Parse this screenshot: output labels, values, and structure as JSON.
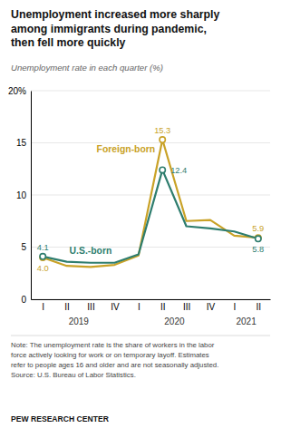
{
  "chart_data": {
    "type": "line",
    "title": "Unemployment increased more sharply\namong immigrants during pandemic,\nthen fell more quickly",
    "subtitle": "Unemployment rate in each quarter (%)",
    "categories": [
      "I",
      "II",
      "III",
      "IV",
      "I",
      "II",
      "III",
      "IV",
      "I",
      "II"
    ],
    "category_groups": [
      {
        "label": "2019",
        "size": 4
      },
      {
        "label": "2020",
        "size": 4
      },
      {
        "label": "2021",
        "size": 2
      }
    ],
    "series": [
      {
        "name": "Foreign-born",
        "color": "#C9A227",
        "values": [
          4.0,
          3.2,
          3.1,
          3.3,
          4.2,
          15.3,
          7.5,
          7.6,
          6.1,
          5.9
        ],
        "value_labels": [
          "4.0",
          null,
          null,
          null,
          null,
          "15.3",
          null,
          null,
          null,
          "5.9"
        ]
      },
      {
        "name": "U.S.-born",
        "color": "#2E7D6E",
        "values": [
          4.1,
          3.6,
          3.5,
          3.5,
          4.3,
          12.4,
          7.0,
          6.8,
          6.5,
          5.8
        ],
        "value_labels": [
          "4.1",
          null,
          null,
          null,
          null,
          "12.4",
          null,
          null,
          null,
          "5.8"
        ]
      }
    ],
    "ylim": [
      0,
      20
    ],
    "yticks": [
      0,
      5,
      10,
      15,
      {
        "value": 20,
        "label": "20%"
      }
    ],
    "grid": true,
    "data_labels": true,
    "marker": "circle",
    "note": "Note: The unemployment rate is the share of workers in the labor\nforce actively looking for work or on temporary layoff. Estimates\nrefer to people ages 16 and older and are not seasonally adjusted.\nSource: U.S. Bureau of Labor Statistics.",
    "source": "PEW RESEARCH CENTER"
  }
}
